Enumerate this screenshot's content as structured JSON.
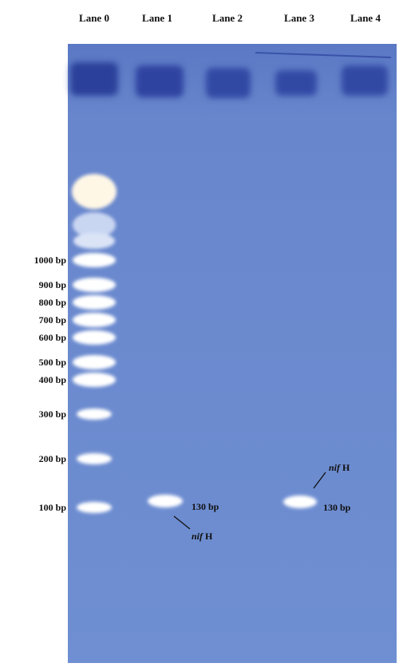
{
  "lanes": [
    "Lane 0",
    "Lane 1",
    "Lane 2",
    "Lane 3",
    "Lane 4"
  ],
  "ladder": [
    "1000 bp",
    "900 bp",
    "800 bp",
    "700 bp",
    "600 bp",
    "500 bp",
    "400 bp",
    "300 bp",
    "200 bp",
    "100 bp"
  ],
  "annotations": [
    {
      "size": "130 bp",
      "gene": "nif",
      "suffix": "H"
    },
    {
      "size": "130 bp",
      "gene": "nif",
      "suffix": "H"
    }
  ]
}
